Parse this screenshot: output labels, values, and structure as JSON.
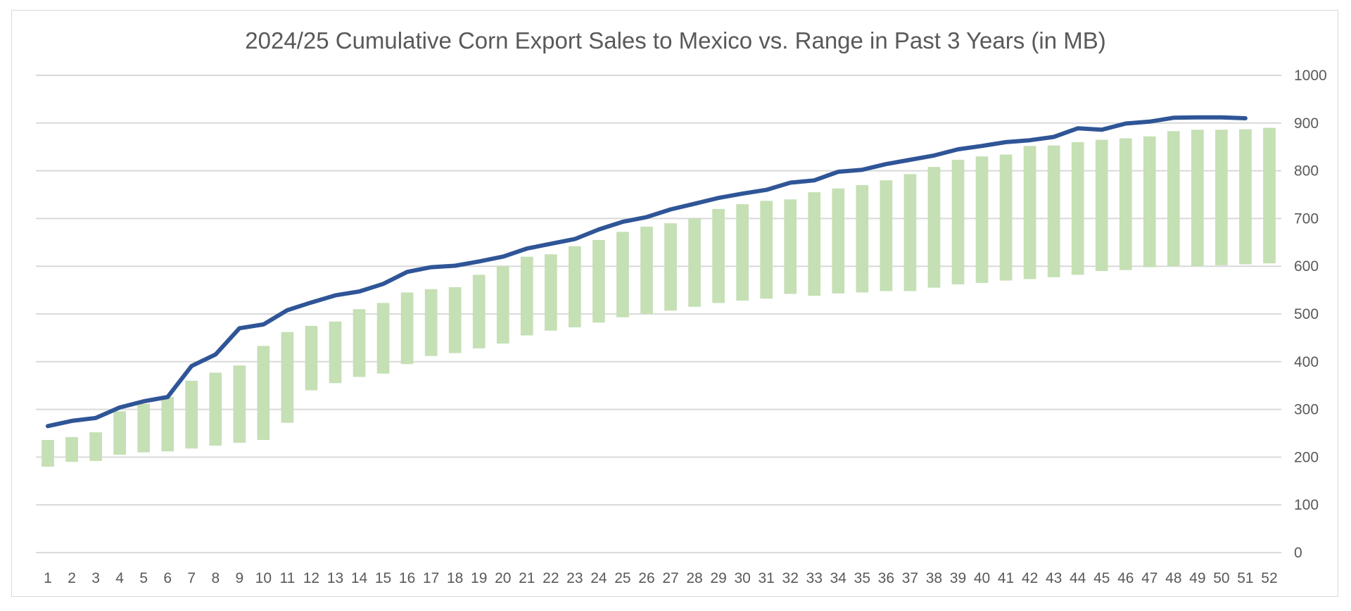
{
  "chart_data": {
    "type": "bar",
    "title": "2024/25 Cumulative Corn Export Sales to Mexico vs. Range in Past 3 Years (in MB)",
    "xlabel": "",
    "ylabel": "",
    "ylim": [
      0,
      1000
    ],
    "y_ticks": [
      0,
      100,
      200,
      300,
      400,
      500,
      600,
      700,
      800,
      900,
      1000
    ],
    "y_axis_position": "right",
    "grid": true,
    "legend": "none",
    "categories": [
      "1",
      "2",
      "3",
      "4",
      "5",
      "6",
      "7",
      "8",
      "9",
      "10",
      "11",
      "12",
      "13",
      "14",
      "15",
      "16",
      "17",
      "18",
      "19",
      "20",
      "21",
      "22",
      "23",
      "24",
      "25",
      "26",
      "27",
      "28",
      "29",
      "30",
      "31",
      "32",
      "33",
      "34",
      "35",
      "36",
      "37",
      "38",
      "39",
      "40",
      "41",
      "42",
      "43",
      "44",
      "45",
      "46",
      "47",
      "48",
      "49",
      "50",
      "51",
      "52"
    ],
    "range_bars": {
      "color": "#c5e0b4",
      "low": [
        180,
        190,
        192,
        205,
        210,
        212,
        218,
        224,
        230,
        236,
        272,
        340,
        355,
        368,
        375,
        395,
        412,
        418,
        428,
        438,
        455,
        465,
        472,
        482,
        493,
        500,
        507,
        515,
        523,
        528,
        532,
        542,
        538,
        543,
        545,
        548,
        548,
        555,
        562,
        565,
        570,
        573,
        577,
        582,
        590,
        592,
        598,
        600,
        600,
        602,
        604,
        606
      ],
      "high": [
        236,
        242,
        252,
        296,
        312,
        326,
        360,
        377,
        392,
        433,
        462,
        475,
        484,
        510,
        523,
        545,
        552,
        556,
        582,
        600,
        620,
        625,
        642,
        655,
        672,
        683,
        690,
        700,
        720,
        730,
        737,
        740,
        755,
        763,
        770,
        780,
        793,
        808,
        823,
        830,
        834,
        852,
        853,
        860,
        865,
        868,
        872,
        883,
        886,
        886,
        887,
        890
      ]
    },
    "series": [
      {
        "type": "line",
        "color": "#2f5597",
        "x": [
          "1",
          "2",
          "3",
          "4",
          "5",
          "6",
          "7",
          "8",
          "9",
          "10",
          "11",
          "12",
          "13",
          "14",
          "15",
          "16",
          "17",
          "18",
          "19",
          "20",
          "21",
          "22",
          "23",
          "24",
          "25",
          "26",
          "27",
          "28",
          "29",
          "30",
          "31",
          "32",
          "33",
          "34",
          "35",
          "36",
          "37",
          "38",
          "39",
          "40",
          "41",
          "42",
          "43",
          "44",
          "45",
          "46",
          "47",
          "48",
          "49",
          "50",
          "51"
        ],
        "values": [
          265,
          276,
          282,
          304,
          317,
          326,
          391,
          415,
          470,
          478,
          508,
          524,
          539,
          547,
          563,
          588,
          598,
          601,
          610,
          620,
          637,
          647,
          657,
          677,
          693,
          703,
          719,
          731,
          743,
          752,
          760,
          775,
          780,
          798,
          802,
          814,
          823,
          832,
          845,
          852,
          860,
          864,
          871,
          889,
          886,
          899,
          903,
          911,
          912,
          912,
          910
        ]
      }
    ]
  }
}
